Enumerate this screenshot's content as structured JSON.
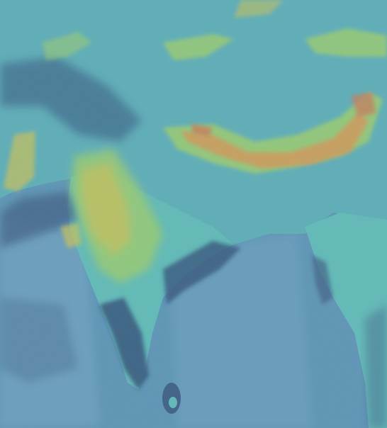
{
  "map": {
    "kind": "satellite-false-color-raster",
    "palette": {
      "ocean": "#5f96b6",
      "ocean_light": "#77a8c4",
      "cloud_dark": "#3f5f86",
      "cloud_deep": "#34527a",
      "land_base": "#5fb0b8",
      "land_teal": "#62bdb7",
      "warm_green": "#9ccf6f",
      "warm_yellow": "#c9c35a",
      "warm_orange": "#d89a55",
      "hot_red": "#cf7a56"
    },
    "labels": []
  }
}
